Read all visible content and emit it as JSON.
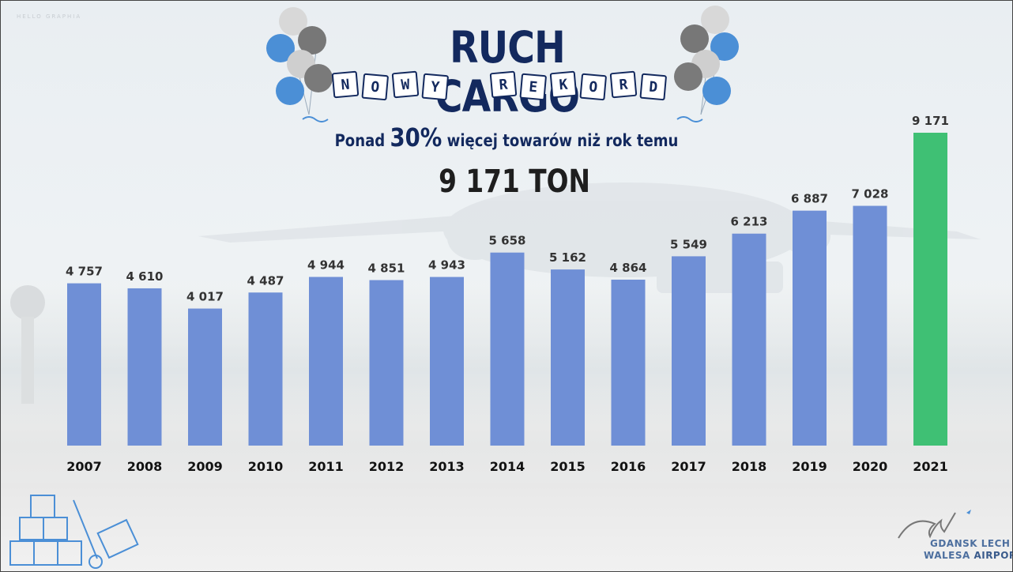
{
  "header": {
    "watermark": "HELLO GRAPHIA",
    "title": "RUCH CARGO",
    "banner_word1": [
      "N",
      "O",
      "W",
      "Y"
    ],
    "banner_word2": [
      "R",
      "E",
      "K",
      "O",
      "R",
      "D"
    ],
    "subtitle_pre": "Ponad ",
    "subtitle_highlight": "30%",
    "subtitle_post": " więcej towarów niż rok temu",
    "total": "9 171 TON"
  },
  "logo": {
    "line1": "GDANSK LECH",
    "line2_a": "WALESA ",
    "line2_b": "AIRPORT"
  },
  "colors": {
    "bar": "#6f8fd6",
    "highlight_bar": "#3fc074",
    "title": "#13295e",
    "balloon_blue": "#4b8fd6",
    "balloon_dark": "#7a7a7a",
    "balloon_light": "#cfcfcf"
  },
  "chart_data": {
    "type": "bar",
    "categories": [
      "2007",
      "2008",
      "2009",
      "2010",
      "2011",
      "2012",
      "2013",
      "2014",
      "2015",
      "2016",
      "2017",
      "2018",
      "2019",
      "2020",
      "2021"
    ],
    "values": [
      4757,
      4610,
      4017,
      4487,
      4944,
      4851,
      4943,
      5658,
      5162,
      4864,
      5549,
      6213,
      6887,
      7028,
      9171
    ],
    "value_labels": [
      "4 757",
      "4 610",
      "4 017",
      "4 487",
      "4 944",
      "4 851",
      "4 943",
      "5 658",
      "5 162",
      "4 864",
      "5 549",
      "6 213",
      "6 887",
      "7 028",
      "9 171"
    ],
    "highlight_index": 14,
    "xlabel": "",
    "ylabel": "",
    "ylim": [
      0,
      9171
    ],
    "grid": false,
    "legend": "none"
  }
}
